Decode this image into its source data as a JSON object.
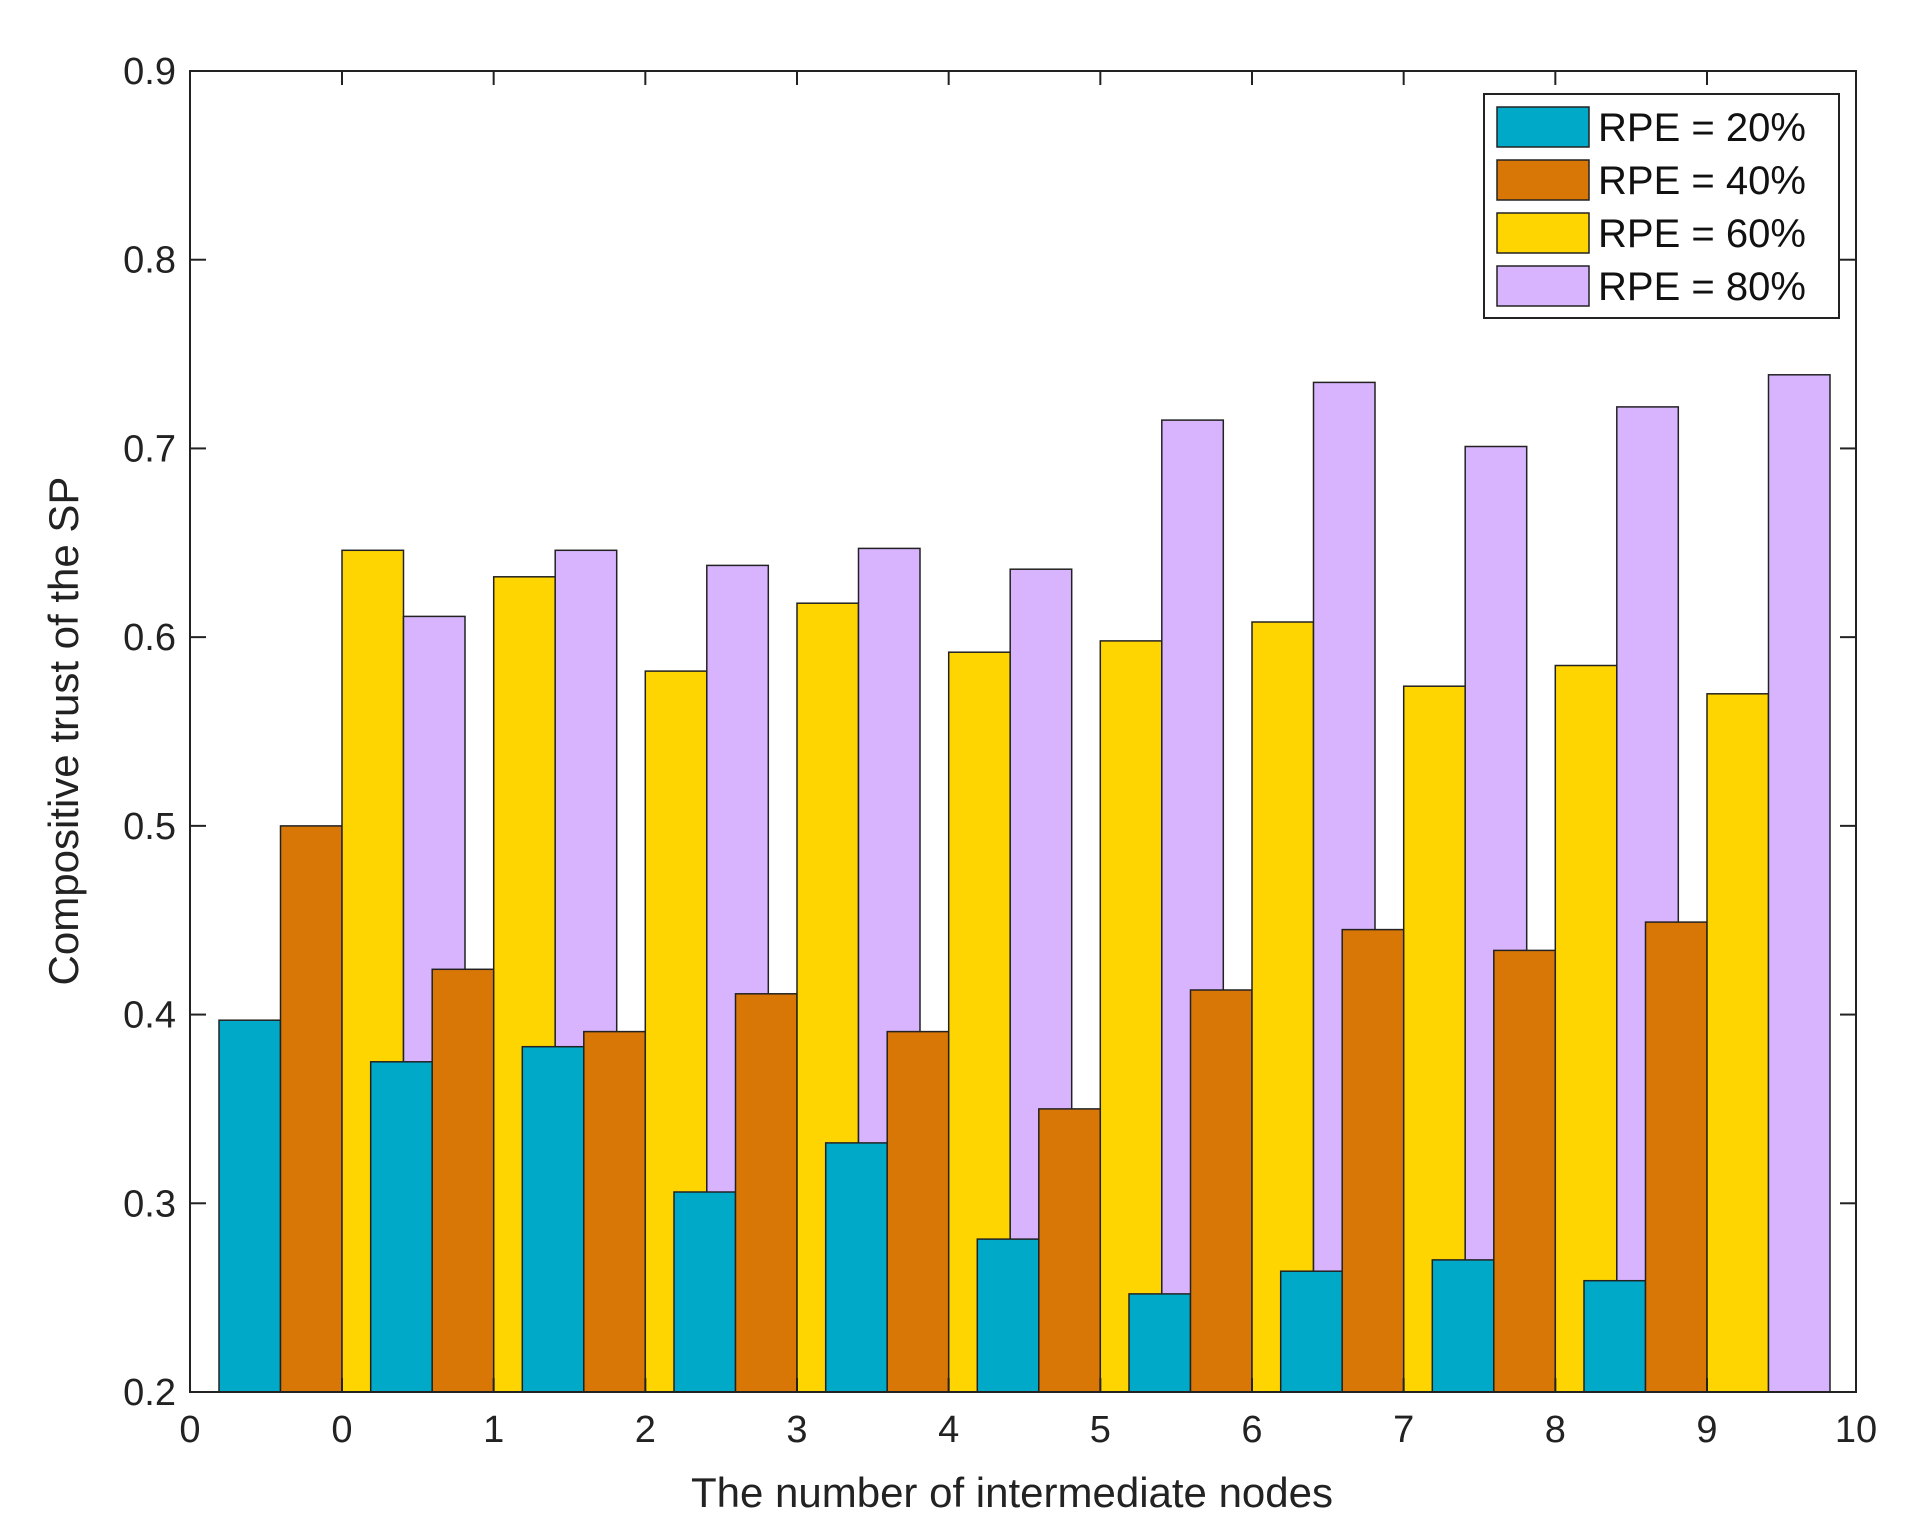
{
  "chart_data": {
    "type": "bar",
    "title": "",
    "xlabel": "The number of intermediate nodes",
    "ylabel": "Compositive trust of the SP",
    "categories": [
      0,
      1,
      2,
      3,
      4,
      5,
      6,
      7,
      8,
      9
    ],
    "xlim": [
      0,
      10
    ],
    "ylim": [
      0.2,
      0.9
    ],
    "xticks": [
      "0",
      "0",
      "1",
      "2",
      "3",
      "4",
      "5",
      "6",
      "7",
      "8",
      "9",
      "10"
    ],
    "yticks": [
      "0.2",
      "0.3",
      "0.4",
      "0.5",
      "0.6",
      "0.7",
      "0.8",
      "0.9"
    ],
    "grid": false,
    "legend_position": "top-right",
    "series": [
      {
        "name": "RPE = 20%",
        "color": "#00a9c8",
        "values": [
          0.397,
          0.375,
          0.383,
          0.306,
          0.332,
          0.281,
          0.252,
          0.264,
          0.27,
          0.259
        ]
      },
      {
        "name": "RPE = 40%",
        "color": "#d97706",
        "values": [
          0.5,
          0.424,
          0.391,
          0.411,
          0.391,
          0.35,
          0.413,
          0.445,
          0.434,
          0.449
        ]
      },
      {
        "name": "RPE = 60%",
        "color": "#fed500",
        "values": [
          0.646,
          0.632,
          0.582,
          0.618,
          0.592,
          0.598,
          0.608,
          0.574,
          0.585,
          0.57
        ]
      },
      {
        "name": "RPE = 80%",
        "color": "#d8b4fe",
        "values": [
          0.611,
          0.646,
          0.638,
          0.647,
          0.636,
          0.715,
          0.735,
          0.701,
          0.722,
          0.739
        ]
      }
    ]
  }
}
